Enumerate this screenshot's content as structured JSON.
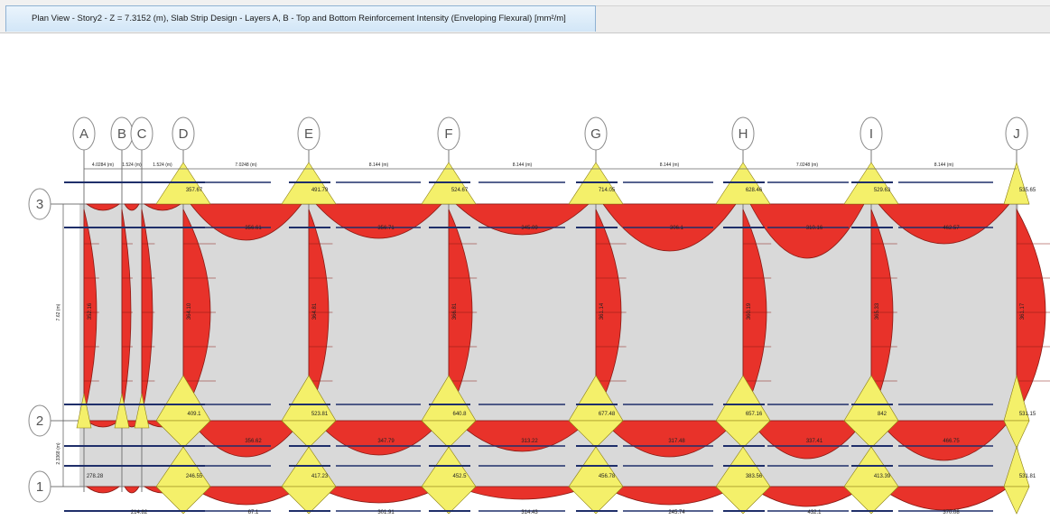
{
  "window": {
    "tab_title": "Plan View - Story2 - Z = 7.3152 (m), Slab Strip Design - Layers A, B - Top and Bottom Reinforcement Intensity (Enveloping Flexural) [mm²/m]"
  },
  "colors": {
    "slab": "#d9d9d9",
    "top_reinforcement": "#f4f06a",
    "bottom_reinforcement": "#e8322a",
    "strip_line": "#1f2f6a"
  },
  "grid": {
    "columns": [
      "A",
      "B",
      "C",
      "D",
      "E",
      "F",
      "G",
      "H",
      "I",
      "J"
    ],
    "rows": [
      "3",
      "2",
      "1"
    ]
  },
  "dimensions": {
    "x_spans": [
      "4.0284 (m)",
      "1.524 (m)",
      "1.524 (m)",
      "7.0248 (m)",
      "8.144 (m)",
      "8.144 (m)",
      "8.144 (m)",
      "7.0248 (m)",
      "8.144 (m)"
    ],
    "y_spans": [
      "7.62 (m)",
      "2.3368 (m)"
    ]
  },
  "values": {
    "row3_support": [
      "357.67",
      "491.79",
      "524.67",
      "714.05",
      "628.46",
      "529.63",
      "535.65"
    ],
    "row3_midspan": [
      "356.61",
      "356.71",
      "345.09",
      "306.1",
      "310.16",
      "462.57"
    ],
    "row2_support": [
      "409.1",
      "523.81",
      "640.8",
      "677.48",
      "657.16",
      "842",
      "531.15"
    ],
    "row2_midspan": [
      "356.62",
      "347.79",
      "313.22",
      "317.48",
      "337.41",
      "466.75"
    ],
    "row1_support": [
      "278.28",
      "246.55",
      "417.23",
      "452.5",
      "456.78",
      "383.56",
      "413.39",
      "531.81"
    ],
    "row1_midspan": [
      "214.82",
      "67.1",
      "301.91",
      "314.43",
      "245.74",
      "432.1",
      "370.08"
    ],
    "d_vertical": [
      "364.10",
      "364.81",
      "366.81",
      "361.14",
      "360.19",
      "365.33",
      "361.17",
      "352.16"
    ]
  }
}
